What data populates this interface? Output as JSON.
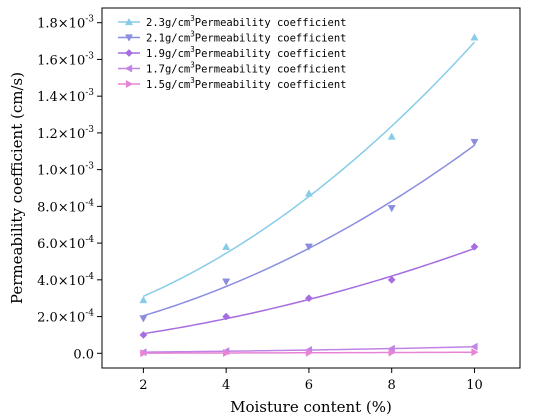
{
  "chart_data": {
    "type": "line",
    "xlabel": "Moisture content (%)",
    "ylabel": "Permeability coefficient (cm/s)",
    "xlim": [
      1,
      11.1
    ],
    "ylim": [
      -8e-05,
      0.00188
    ],
    "x_ticks": [
      {
        "value": 2,
        "label": "2"
      },
      {
        "value": 4,
        "label": "4"
      },
      {
        "value": 6,
        "label": "6"
      },
      {
        "value": 8,
        "label": "8"
      },
      {
        "value": 10,
        "label": "10"
      }
    ],
    "y_ticks": [
      {
        "value": 0,
        "mant": "0.0",
        "exp": ""
      },
      {
        "value": 0.0002,
        "mant": "2.0×10",
        "exp": "-4"
      },
      {
        "value": 0.0004,
        "mant": "4.0×10",
        "exp": "-4"
      },
      {
        "value": 0.0006,
        "mant": "6.0×10",
        "exp": "-4"
      },
      {
        "value": 0.0008,
        "mant": "8.0×10",
        "exp": "-4"
      },
      {
        "value": 0.001,
        "mant": "1.0×10",
        "exp": "-3"
      },
      {
        "value": 0.0012,
        "mant": "1.2×10",
        "exp": "-3"
      },
      {
        "value": 0.0014,
        "mant": "1.4×10",
        "exp": "-3"
      },
      {
        "value": 0.0016,
        "mant": "1.6×10",
        "exp": "-3"
      },
      {
        "value": 0.0018,
        "mant": "1.8×10",
        "exp": "-3"
      }
    ],
    "grid": false,
    "legend_position": "top-left",
    "x": [
      2,
      4,
      6,
      8,
      10
    ],
    "series": [
      {
        "name_pre": "2.3g/cm",
        "name_sup": "3",
        "name_post": "Permeability coefficient",
        "marker": "triangle-up",
        "color": "#87cce8",
        "values": [
          0.00029,
          0.00058,
          0.00087,
          0.00118,
          0.00172
        ]
      },
      {
        "name_pre": "2.1g/cm",
        "name_sup": "3",
        "name_post": "Permeability coefficient",
        "marker": "triangle-down",
        "color": "#8b8ee0",
        "values": [
          0.00019,
          0.00039,
          0.00058,
          0.00079,
          0.00115
        ]
      },
      {
        "name_pre": "1.9g/cm",
        "name_sup": "3",
        "name_post": "Permeability coefficient",
        "marker": "diamond",
        "color": "#a66ee0",
        "values": [
          0.0001,
          0.0002,
          0.0003,
          0.0004,
          0.00058
        ]
      },
      {
        "name_pre": "1.7g/cm",
        "name_sup": "3",
        "name_post": "Permeability coefficient",
        "marker": "triangle-left",
        "color": "#c184e6",
        "values": [
          6e-06,
          1.2e-05,
          1.8e-05,
          2.5e-05,
          3.6e-05
        ]
      },
      {
        "name_pre": "1.5g/cm",
        "name_sup": "3",
        "name_post": "Permeability coefficient",
        "marker": "triangle-right",
        "color": "#e884d6",
        "values": [
          1e-06,
          2e-06,
          3e-06,
          4e-06,
          6e-06
        ]
      }
    ]
  }
}
